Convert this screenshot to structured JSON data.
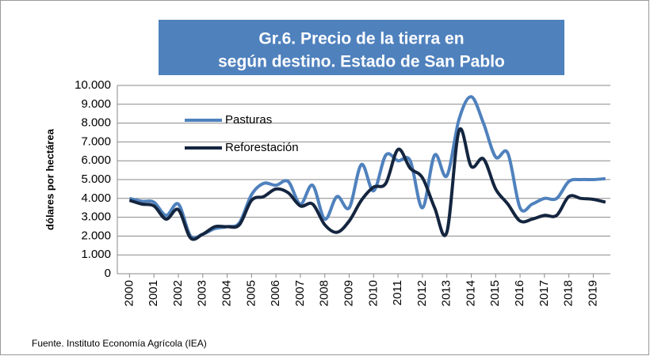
{
  "chart_data": {
    "type": "line",
    "title": [
      "Gr.6.   Precio de la tierra en",
      "según destino. Estado de San Pablo"
    ],
    "y_label": "dólares por hectárea",
    "source": "Fuente. Instituto Economía Agrícola (IEA)",
    "x": [
      2000,
      2000.5,
      2001,
      2001.5,
      2002,
      2002.5,
      2003,
      2003.5,
      2004,
      2004.5,
      2005,
      2005.5,
      2006,
      2006.5,
      2007,
      2007.5,
      2008,
      2008.5,
      2009,
      2009.5,
      2010,
      2010.5,
      2011,
      2011.5,
      2012,
      2012.5,
      2013,
      2013.5,
      2014,
      2014.5,
      2015,
      2015.5,
      2016,
      2016.5,
      2017,
      2017.5,
      2018,
      2018.5,
      2019,
      2019.5
    ],
    "series": [
      {
        "name": "Pasturas",
        "color": "#4f81bd",
        "values": [
          4000,
          3850,
          3800,
          3100,
          3700,
          2000,
          2100,
          2400,
          2500,
          2700,
          4200,
          4800,
          4700,
          4900,
          3700,
          4700,
          2900,
          4100,
          3500,
          5800,
          4400,
          6300,
          6000,
          6000,
          3500,
          6300,
          5200,
          8200,
          9400,
          8000,
          6200,
          6400,
          3500,
          3700,
          4000,
          4000,
          4900,
          5000,
          5000,
          5050
        ]
      },
      {
        "name": "Reforestación",
        "color": "#14253f",
        "values": [
          3900,
          3700,
          3600,
          2900,
          3400,
          1900,
          2100,
          2500,
          2500,
          2600,
          3900,
          4100,
          4500,
          4300,
          3600,
          3700,
          2600,
          2200,
          2800,
          3900,
          4600,
          4800,
          6600,
          5600,
          5100,
          3500,
          2200,
          7600,
          5700,
          6100,
          4500,
          3700,
          2800,
          2900,
          3100,
          3100,
          4100,
          4000,
          3950,
          3800
        ]
      }
    ],
    "xlim": [
      1999.5,
      2019.7
    ],
    "xticks": [
      2000,
      2001,
      2002,
      2003,
      2004,
      2005,
      2006,
      2007,
      2008,
      2009,
      2010,
      2011,
      2012,
      2013,
      2014,
      2015,
      2016,
      2017,
      2018,
      2019
    ],
    "ylim": [
      0,
      10000
    ],
    "yticks": [
      0,
      {
        "value": 1000,
        "label": "1.000"
      },
      {
        "value": 2000,
        "label": "2.000"
      },
      {
        "value": 3000,
        "label": "3.000"
      },
      {
        "value": 4000,
        "label": "4.000"
      },
      {
        "value": 5000,
        "label": "5.000"
      },
      {
        "value": 6000,
        "label": "6.000"
      },
      {
        "value": 7000,
        "label": "7.000"
      },
      {
        "value": 8000,
        "label": "8.000"
      },
      {
        "value": 9000,
        "label": "9.000"
      },
      {
        "value": 10000,
        "label": "10.000"
      }
    ],
    "grid": true,
    "legend": "inside-top-left",
    "title_box_color": "#4f81bd"
  }
}
